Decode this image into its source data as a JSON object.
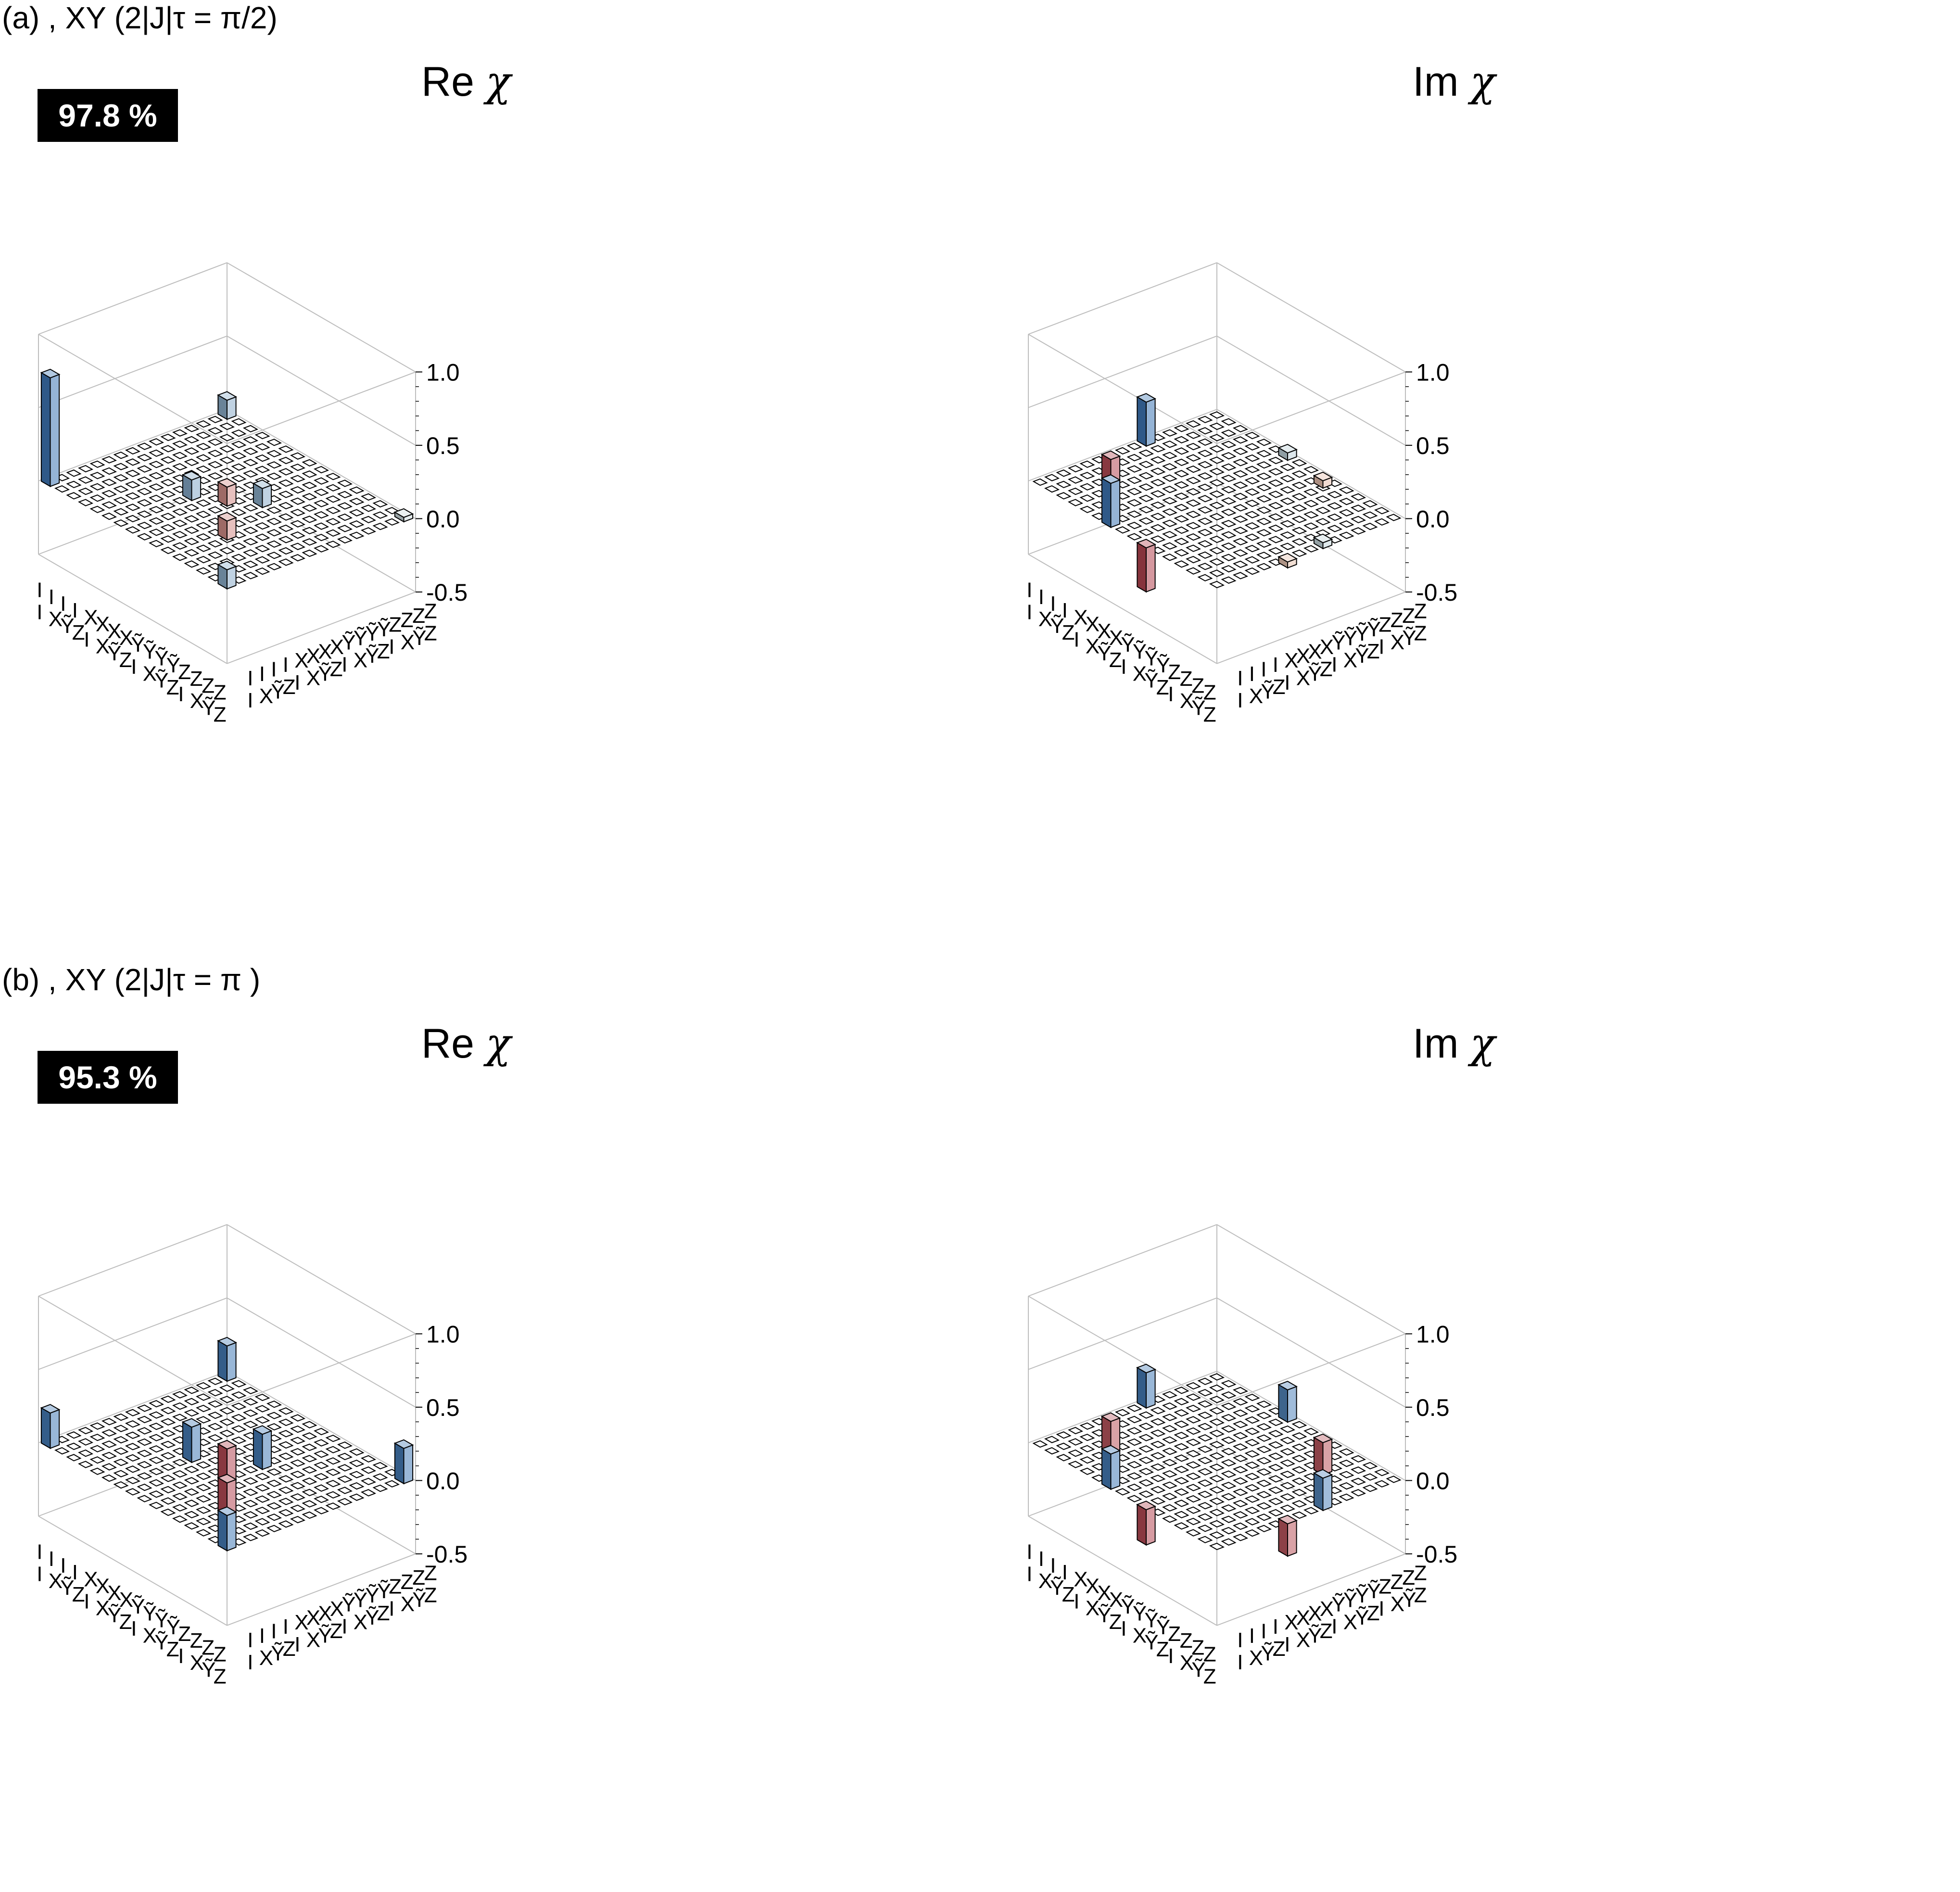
{
  "rows": [
    {
      "label": "(a) , XY (2|J|τ = π/2)",
      "fidelity": "97.8 %"
    },
    {
      "label": "(b) , XY (2|J|τ = π )",
      "fidelity": "95.3 %"
    }
  ],
  "panel_titles": {
    "re": {
      "prefix": "Re ",
      "symbol": "χ"
    },
    "im": {
      "prefix": "Im ",
      "symbol": "χ"
    }
  },
  "colors": {
    "positive": "#3f77b5",
    "negative": "#b34450",
    "small_positive": "#dfe9e3",
    "small_negative": "#f1dcc4",
    "grid_edge": "#000000",
    "frame": "#bdbdbd"
  },
  "chart_data": [
    {
      "type": "bar3d",
      "panel": "(a) Re χ",
      "zlim": [
        -0.5,
        1.0
      ],
      "zticks": [
        "1.0",
        "0.5",
        "0.0",
        "-0.5"
      ],
      "row_labels": [
        "I I",
        "I X",
        "I Ỹ",
        "I Z",
        "X I",
        "X X",
        "X Ỹ",
        "X Z",
        "Ỹ I",
        "Ỹ X",
        "Ỹ Ỹ",
        "Ỹ Z",
        "Z I",
        "Z X",
        "Z Ỹ",
        "Z Z"
      ],
      "col_labels": [
        "I I",
        "I X",
        "I Ỹ",
        "I Z",
        "X I",
        "X X",
        "X Ỹ",
        "X Z",
        "Ỹ I",
        "Ỹ X",
        "Ỹ Ỹ",
        "Ỹ Z",
        "Z I",
        "Z X",
        "Z Ỹ",
        "Z Z"
      ],
      "bars": [
        {
          "row": "I I",
          "col": "I I",
          "value": 0.74
        },
        {
          "row": "I I",
          "col": "Z Z",
          "value": 0.13
        },
        {
          "row": "Z Z",
          "col": "I I",
          "value": 0.13
        },
        {
          "row": "X Ỹ",
          "col": "X Ỹ",
          "value": 0.14
        },
        {
          "row": "X Ỹ",
          "col": "Ỹ X",
          "value": -0.13
        },
        {
          "row": "Ỹ X",
          "col": "X Ỹ",
          "value": -0.13
        },
        {
          "row": "Ỹ X",
          "col": "Ỹ X",
          "value": 0.13
        },
        {
          "row": "Z Z",
          "col": "Z Z",
          "value": 0.03
        }
      ]
    },
    {
      "type": "bar3d",
      "panel": "(a) Im χ",
      "zlim": [
        -0.5,
        1.0
      ],
      "zticks": [
        "1.0",
        "0.5",
        "0.0",
        "-0.5"
      ],
      "bars": [
        {
          "row": "I I",
          "col": "X Ỹ",
          "value": -0.24
        },
        {
          "row": "I I",
          "col": "Ỹ X",
          "value": 0.3
        },
        {
          "row": "X Ỹ",
          "col": "I I",
          "value": 0.3
        },
        {
          "row": "Ỹ X",
          "col": "I I",
          "value": -0.3
        },
        {
          "row": "X Ỹ",
          "col": "Z Z",
          "value": 0.05
        },
        {
          "row": "Ỹ X",
          "col": "Z Z",
          "value": -0.05
        },
        {
          "row": "Z Z",
          "col": "X Ỹ",
          "value": -0.04
        },
        {
          "row": "Z Z",
          "col": "Ỹ X",
          "value": 0.04
        }
      ]
    },
    {
      "type": "bar3d",
      "panel": "(b) Re χ",
      "zlim": [
        -0.5,
        1.0
      ],
      "zticks": [
        "1.0",
        "0.5",
        "0.0",
        "-0.5"
      ],
      "bars": [
        {
          "row": "I I",
          "col": "I I",
          "value": 0.24
        },
        {
          "row": "I I",
          "col": "Z Z",
          "value": 0.24
        },
        {
          "row": "Z Z",
          "col": "I I",
          "value": 0.24
        },
        {
          "row": "Z Z",
          "col": "Z Z",
          "value": 0.24
        },
        {
          "row": "X Ỹ",
          "col": "X Ỹ",
          "value": 0.24
        },
        {
          "row": "Ỹ X",
          "col": "Ỹ X",
          "value": 0.24
        },
        {
          "row": "X Ỹ",
          "col": "Ỹ X",
          "value": -0.24
        },
        {
          "row": "Ỹ X",
          "col": "X Ỹ",
          "value": -0.24
        }
      ]
    },
    {
      "type": "bar3d",
      "panel": "(b) Im χ",
      "zlim": [
        -0.5,
        1.0
      ],
      "zticks": [
        "1.0",
        "0.5",
        "0.0",
        "-0.5"
      ],
      "bars": [
        {
          "row": "I I",
          "col": "X Ỹ",
          "value": -0.22
        },
        {
          "row": "I I",
          "col": "Ỹ X",
          "value": 0.24
        },
        {
          "row": "X Ỹ",
          "col": "I I",
          "value": 0.24
        },
        {
          "row": "Ỹ X",
          "col": "I I",
          "value": -0.24
        },
        {
          "row": "X Ỹ",
          "col": "Z Z",
          "value": 0.22
        },
        {
          "row": "Ỹ X",
          "col": "Z Z",
          "value": -0.22
        },
        {
          "row": "Z Z",
          "col": "X Ỹ",
          "value": -0.22
        },
        {
          "row": "Z Z",
          "col": "Ỹ X",
          "value": 0.22
        }
      ]
    }
  ]
}
